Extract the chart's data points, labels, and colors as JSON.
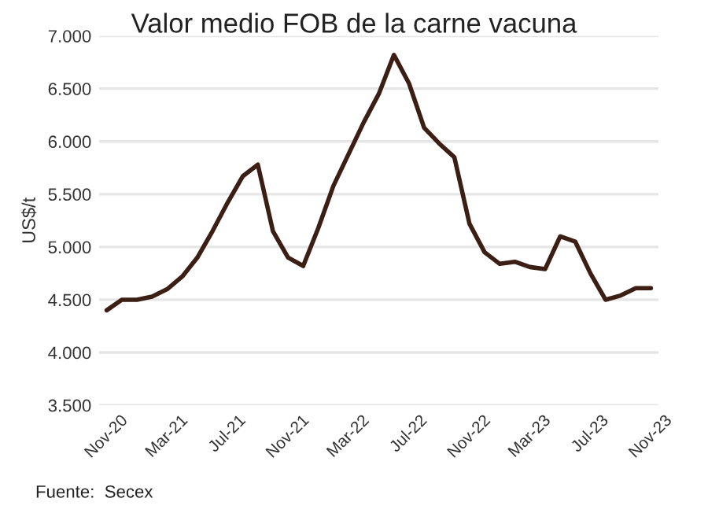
{
  "chart_data": {
    "type": "line",
    "title": "Valor medio FOB de la carne vacuna",
    "ylabel": "US$/t",
    "categories": [
      "Nov-20",
      null,
      null,
      null,
      "Mar-21",
      null,
      null,
      null,
      "Jul-21",
      null,
      null,
      null,
      "Nov-21",
      null,
      null,
      null,
      "Mar-22",
      null,
      null,
      null,
      "Jul-22",
      null,
      null,
      null,
      "Nov-22",
      null,
      null,
      null,
      "Mar-23",
      null,
      null,
      null,
      "Jul-23",
      null,
      null,
      null,
      "Nov-23"
    ],
    "series": [
      {
        "color": "#3b1f14",
        "values": [
          4400,
          4500,
          4500,
          4530,
          4600,
          4720,
          4900,
          5150,
          5420,
          5670,
          5780,
          5150,
          4900,
          4820,
          5180,
          5580,
          5880,
          6180,
          6450,
          6820,
          6550,
          6130,
          5980,
          5850,
          5220,
          4950,
          4840,
          4860,
          4810,
          4790,
          5100,
          5050,
          4750,
          4500,
          4540,
          4610,
          4610
        ]
      }
    ],
    "ylim": [
      3500,
      7000
    ],
    "yticks": [
      {
        "value": 3500,
        "label": "3.500"
      },
      {
        "value": 4000,
        "label": "4.000"
      },
      {
        "value": 4500,
        "label": "4.500"
      },
      {
        "value": 5000,
        "label": "5.000"
      },
      {
        "value": 5500,
        "label": "5.500"
      },
      {
        "value": 6000,
        "label": "6.000"
      },
      {
        "value": 6500,
        "label": "6.500"
      },
      {
        "value": 7000,
        "label": "7.000"
      }
    ],
    "grid": "y",
    "legend": false,
    "annotations": [
      "Fuente:  Secex"
    ]
  }
}
